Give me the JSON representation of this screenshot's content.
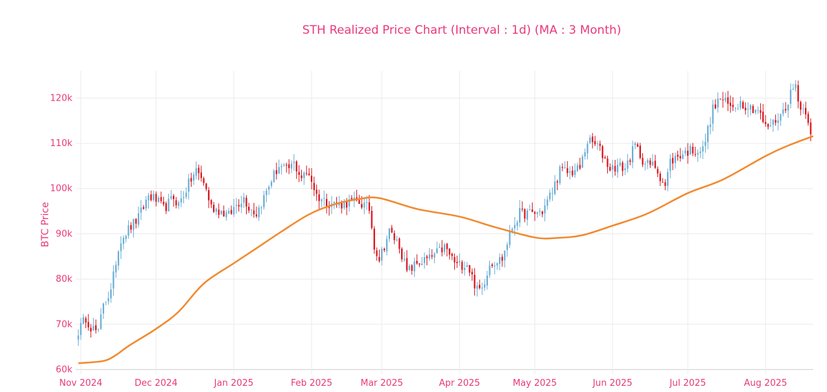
{
  "chart_data": {
    "type": "candlestick",
    "title": "STH Realized Price Chart (Interval : 1d) (MA : 3 Month)",
    "xlabel": "",
    "ylabel": "BTC Price",
    "ylim": [
      59000,
      126000
    ],
    "y_ticks": [
      60000,
      70000,
      80000,
      90000,
      100000,
      110000,
      120000
    ],
    "y_tick_labels": [
      "60k",
      "70k",
      "80k",
      "90k",
      "100k",
      "110k",
      "120k"
    ],
    "x_range": [
      "2024-10-30",
      "2025-08-20"
    ],
    "x_ticks": [
      "2024-11-01",
      "2024-12-01",
      "2025-01-01",
      "2025-02-01",
      "2025-03-01",
      "2025-04-01",
      "2025-05-01",
      "2025-06-01",
      "2025-07-01",
      "2025-08-01"
    ],
    "x_tick_labels": [
      "Nov 2024",
      "Dec 2024",
      "Jan 2025",
      "Feb 2025",
      "Mar 2025",
      "Apr 2025",
      "May 2025",
      "Jun 2025",
      "Jul 2025",
      "Aug 2025"
    ],
    "grid": true,
    "legend": "none",
    "colors": {
      "increasing": "#6aaed6",
      "decreasing": "#d9131a",
      "ma": "#f08a30",
      "text": "#e8397a"
    },
    "candles": {
      "name": "BTC Price",
      "start_date": "2024-10-31",
      "interval": "1d",
      "close_path": [
        [
          "2024-10-31",
          68500
        ],
        [
          "2024-11-03",
          71500
        ],
        [
          "2024-11-05",
          69500
        ],
        [
          "2024-11-08",
          68000
        ],
        [
          "2024-11-10",
          75000
        ],
        [
          "2024-11-13",
          77000
        ],
        [
          "2024-11-15",
          84000
        ],
        [
          "2024-11-17",
          89000
        ],
        [
          "2024-11-20",
          91000
        ],
        [
          "2024-11-24",
          93500
        ],
        [
          "2024-11-28",
          98500
        ],
        [
          "2024-12-01",
          97500
        ],
        [
          "2024-12-04",
          95500
        ],
        [
          "2024-12-08",
          98000
        ],
        [
          "2024-12-10",
          96500
        ],
        [
          "2024-12-14",
          101000
        ],
        [
          "2024-12-17",
          104000
        ],
        [
          "2024-12-20",
          101500
        ],
        [
          "2024-12-23",
          96000
        ],
        [
          "2024-12-27",
          95000
        ],
        [
          "2024-12-30",
          94000
        ],
        [
          "2025-01-02",
          96500
        ],
        [
          "2025-01-05",
          98000
        ],
        [
          "2025-01-07",
          96000
        ],
        [
          "2025-01-10",
          94500
        ],
        [
          "2025-01-13",
          98000
        ],
        [
          "2025-01-16",
          102000
        ],
        [
          "2025-01-19",
          105000
        ],
        [
          "2025-01-22",
          104000
        ],
        [
          "2025-01-25",
          105500
        ],
        [
          "2025-01-28",
          102500
        ],
        [
          "2025-01-31",
          103500
        ],
        [
          "2025-02-03",
          98500
        ],
        [
          "2025-02-07",
          97000
        ],
        [
          "2025-02-12",
          96500
        ],
        [
          "2025-02-16",
          97000
        ],
        [
          "2025-02-20",
          97000
        ],
        [
          "2025-02-24",
          95500
        ],
        [
          "2025-02-26",
          87500
        ],
        [
          "2025-02-28",
          84500
        ],
        [
          "2025-03-02",
          87500
        ],
        [
          "2025-03-04",
          90500
        ],
        [
          "2025-03-08",
          87500
        ],
        [
          "2025-03-11",
          81500
        ],
        [
          "2025-03-15",
          83500
        ],
        [
          "2025-03-20",
          84500
        ],
        [
          "2025-03-26",
          87000
        ],
        [
          "2025-03-31",
          83000
        ],
        [
          "2025-04-04",
          83500
        ],
        [
          "2025-04-08",
          77500
        ],
        [
          "2025-04-10",
          78000
        ],
        [
          "2025-04-13",
          83500
        ],
        [
          "2025-04-18",
          84500
        ],
        [
          "2025-04-22",
          91500
        ],
        [
          "2025-04-25",
          94500
        ],
        [
          "2025-04-30",
          94500
        ],
        [
          "2025-05-04",
          95000
        ],
        [
          "2025-05-08",
          99500
        ],
        [
          "2025-05-11",
          104000
        ],
        [
          "2025-05-15",
          103500
        ],
        [
          "2025-05-19",
          104500
        ],
        [
          "2025-05-22",
          110500
        ],
        [
          "2025-05-26",
          109500
        ],
        [
          "2025-05-31",
          104500
        ],
        [
          "2025-06-03",
          105000
        ],
        [
          "2025-06-06",
          104500
        ],
        [
          "2025-06-10",
          109500
        ],
        [
          "2025-06-14",
          105500
        ],
        [
          "2025-06-18",
          105000
        ],
        [
          "2025-06-22",
          100500
        ],
        [
          "2025-06-24",
          106000
        ],
        [
          "2025-06-28",
          107500
        ],
        [
          "2025-07-02",
          108500
        ],
        [
          "2025-07-07",
          108500
        ],
        [
          "2025-07-11",
          117500
        ],
        [
          "2025-07-14",
          120000
        ],
        [
          "2025-07-18",
          118000
        ],
        [
          "2025-07-22",
          119000
        ],
        [
          "2025-07-26",
          118000
        ],
        [
          "2025-07-29",
          117500
        ],
        [
          "2025-08-01",
          113500
        ],
        [
          "2025-08-04",
          114500
        ],
        [
          "2025-08-08",
          117000
        ],
        [
          "2025-08-11",
          121000
        ],
        [
          "2025-08-13",
          123000
        ],
        [
          "2025-08-15",
          117500
        ],
        [
          "2025-08-17",
          117500
        ],
        [
          "2025-08-19",
          113000
        ]
      ]
    },
    "series": [
      {
        "name": "MA (3 Month)",
        "type": "line",
        "x": [
          "2024-10-31",
          "2024-11-10",
          "2024-11-15",
          "2024-11-20",
          "2024-12-01",
          "2024-12-10",
          "2024-12-20",
          "2025-01-01",
          "2025-01-10",
          "2025-01-20",
          "2025-01-31",
          "2025-02-10",
          "2025-02-20",
          "2025-02-28",
          "2025-03-15",
          "2025-04-01",
          "2025-04-15",
          "2025-05-01",
          "2025-05-10",
          "2025-05-20",
          "2025-06-01",
          "2025-06-15",
          "2025-07-01",
          "2025-07-15",
          "2025-08-01",
          "2025-08-10",
          "2025-08-20"
        ],
        "values": [
          61400,
          61900,
          63200,
          65200,
          69000,
          72800,
          79000,
          83500,
          86800,
          90500,
          94300,
          96500,
          97700,
          97900,
          95500,
          93800,
          91500,
          89200,
          89100,
          89700,
          91800,
          94500,
          99000,
          102000,
          107200,
          109500,
          111600
        ]
      }
    ]
  }
}
